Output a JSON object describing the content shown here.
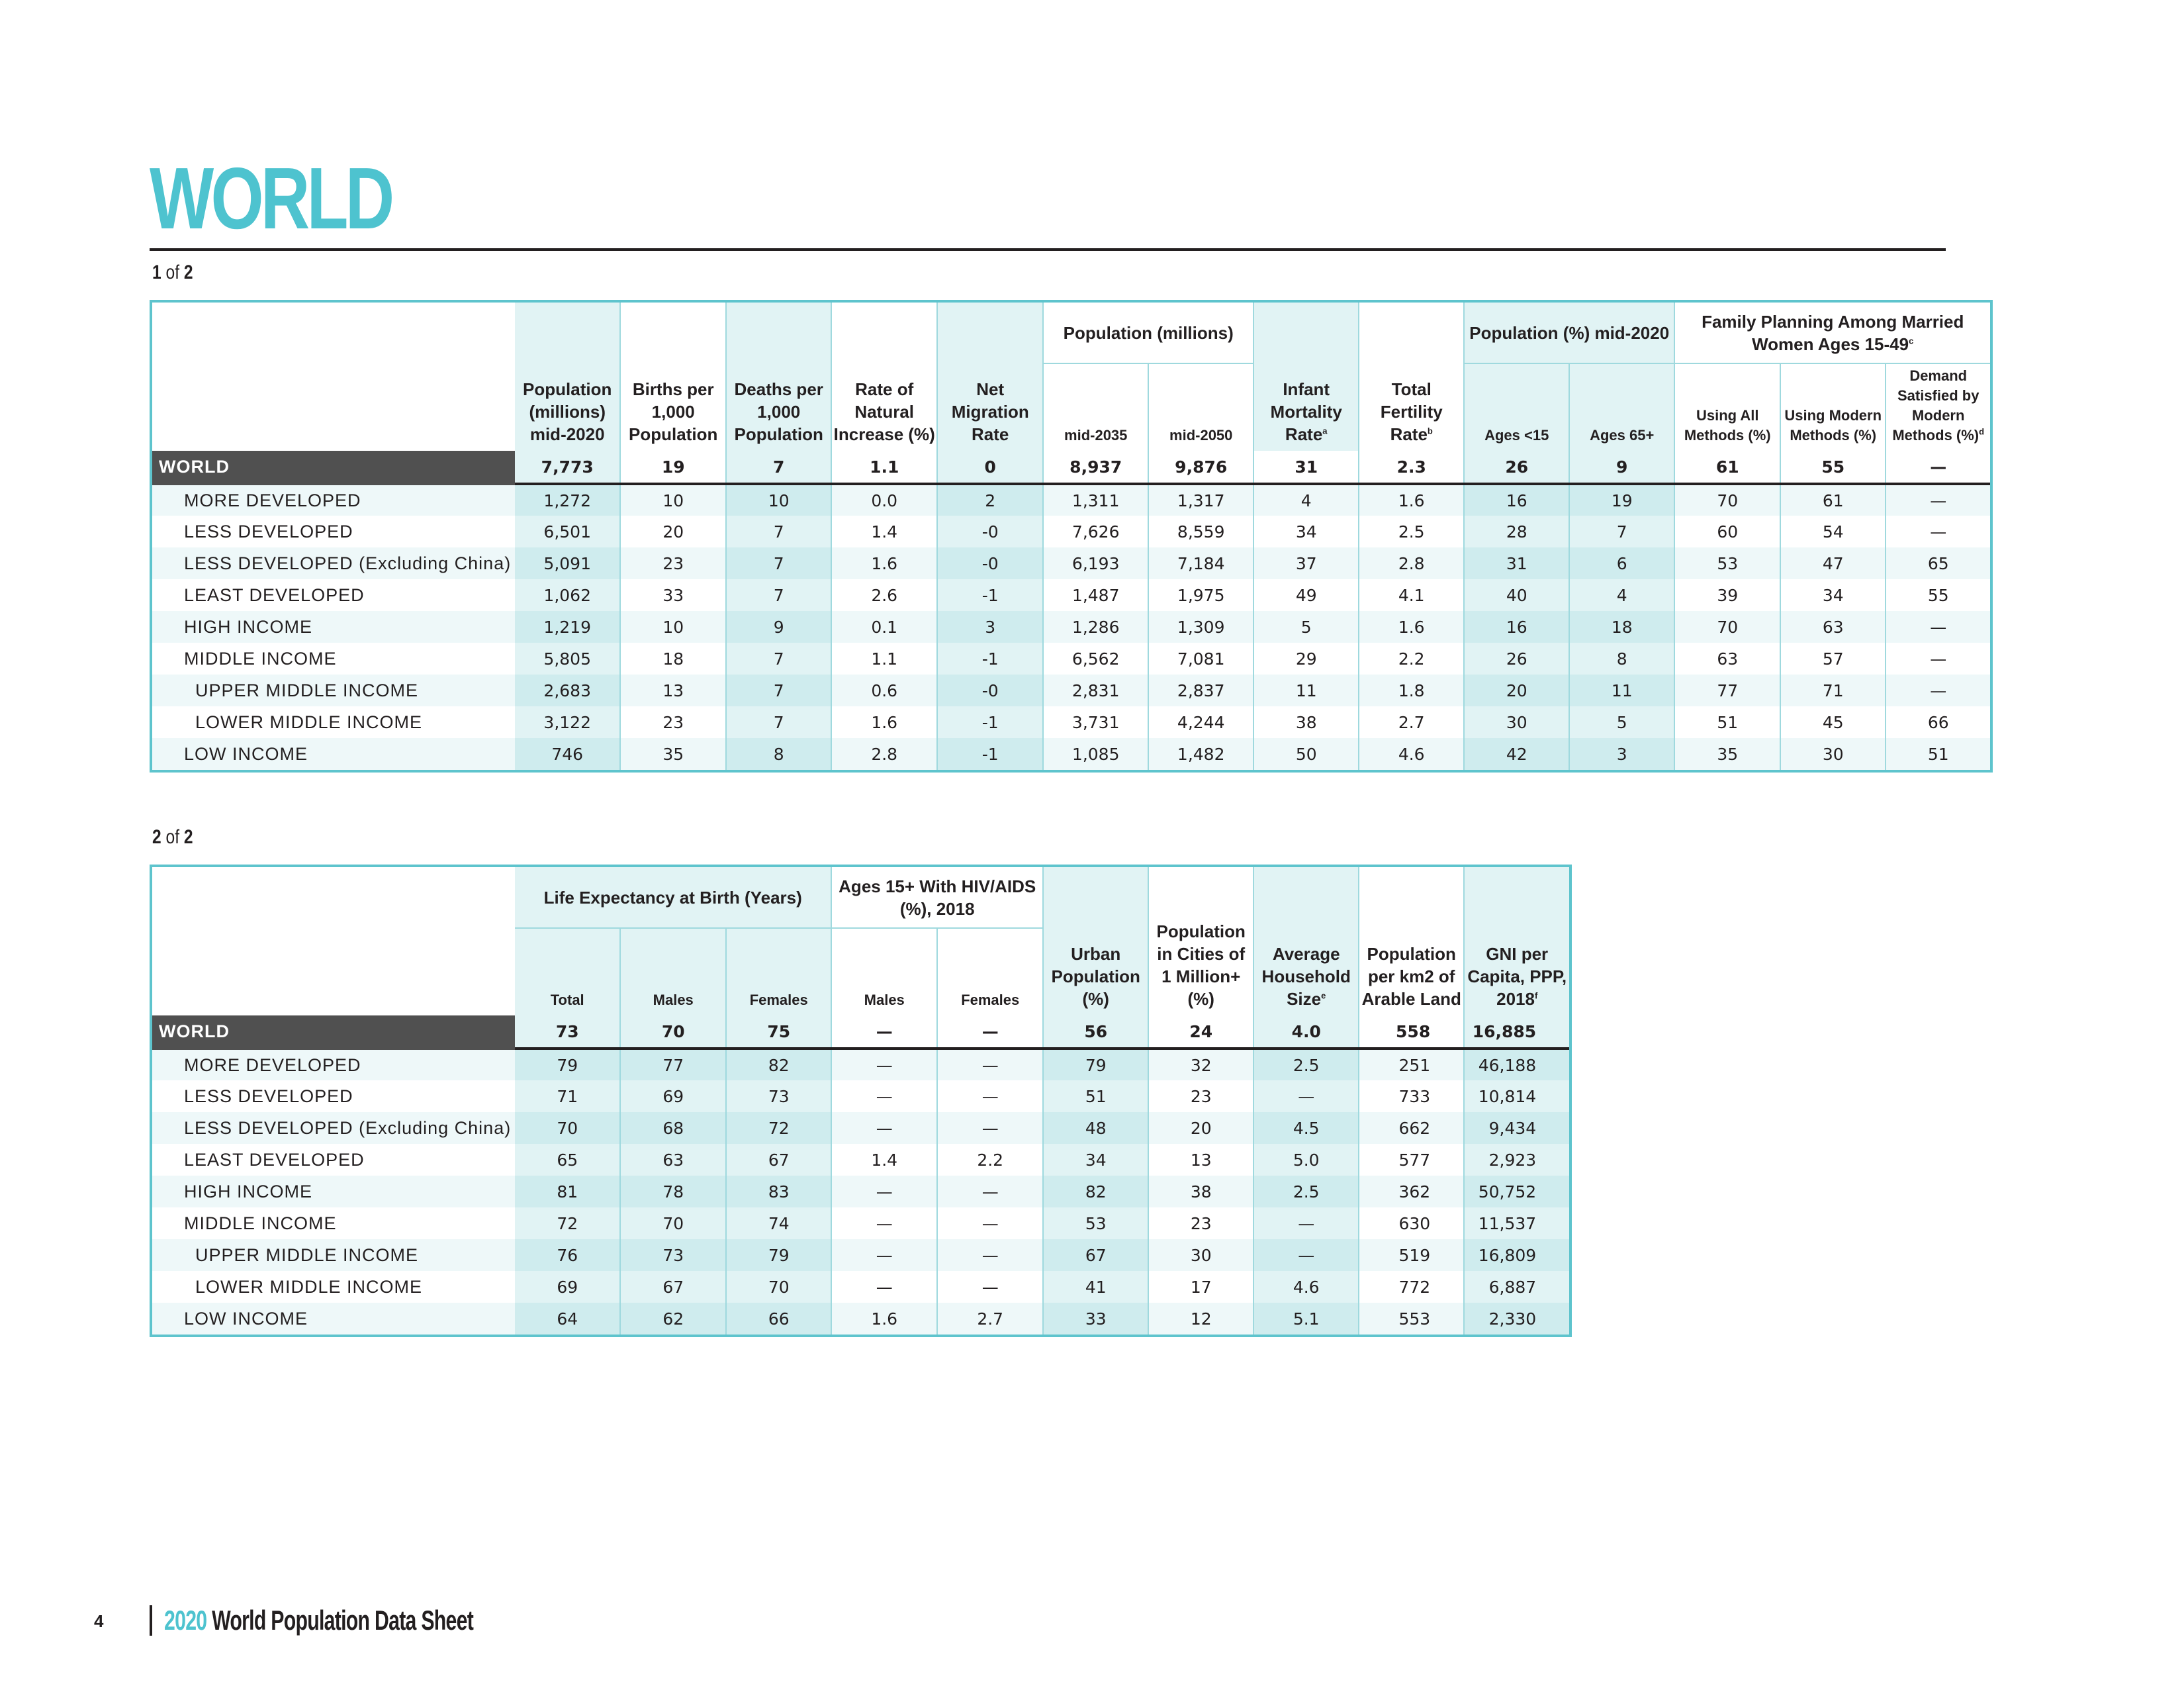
{
  "page": {
    "title": "WORLD",
    "page_number": "4",
    "footer_year": "2020",
    "footer_title": "World Population Data Sheet",
    "accent_color": "#4ec3cf"
  },
  "part1": {
    "label_n": "1",
    "label_of": "of",
    "label_total": "2",
    "groups": {
      "pop_projection": "Population (millions)",
      "pop_pct": "Population (%) mid-2020",
      "family_planning": "Family Planning Among Married Women Ages 15-49"
    },
    "columns": [
      "Population (millions) mid-2020",
      "Births per 1,000 Population",
      "Deaths per 1,000 Population",
      "Rate of Natural Increase (%)",
      "Net Migration Rate",
      "mid-2035",
      "mid-2050",
      "Infant Mortality Rate",
      "Total Fertility Rate",
      "Ages <15",
      "Ages 65+",
      "Using All Methods (%)",
      "Using Modern Methods (%)",
      "Demand Satisfied by Modern Methods (%)"
    ],
    "rows": [
      {
        "label": "WORLD",
        "values": [
          "7,773",
          "19",
          "7",
          "1.1",
          "0",
          "8,937",
          "9,876",
          "31",
          "2.3",
          "26",
          "9",
          "61",
          "55",
          "—"
        ]
      },
      {
        "label": "MORE DEVELOPED",
        "values": [
          "1,272",
          "10",
          "10",
          "0.0",
          "2",
          "1,311",
          "1,317",
          "4",
          "1.6",
          "16",
          "19",
          "70",
          "61",
          "—"
        ]
      },
      {
        "label": "LESS DEVELOPED",
        "values": [
          "6,501",
          "20",
          "7",
          "1.4",
          "-0",
          "7,626",
          "8,559",
          "34",
          "2.5",
          "28",
          "7",
          "60",
          "54",
          "—"
        ]
      },
      {
        "label": "LESS DEVELOPED (Excluding China)",
        "values": [
          "5,091",
          "23",
          "7",
          "1.6",
          "-0",
          "6,193",
          "7,184",
          "37",
          "2.8",
          "31",
          "6",
          "53",
          "47",
          "65"
        ]
      },
      {
        "label": "LEAST DEVELOPED",
        "values": [
          "1,062",
          "33",
          "7",
          "2.6",
          "-1",
          "1,487",
          "1,975",
          "49",
          "4.1",
          "40",
          "4",
          "39",
          "34",
          "55"
        ]
      },
      {
        "label": "HIGH INCOME",
        "values": [
          "1,219",
          "10",
          "9",
          "0.1",
          "3",
          "1,286",
          "1,309",
          "5",
          "1.6",
          "16",
          "18",
          "70",
          "63",
          "—"
        ]
      },
      {
        "label": "MIDDLE INCOME",
        "values": [
          "5,805",
          "18",
          "7",
          "1.1",
          "-1",
          "6,562",
          "7,081",
          "29",
          "2.2",
          "26",
          "8",
          "63",
          "57",
          "—"
        ]
      },
      {
        "label": "UPPER MIDDLE INCOME",
        "values": [
          "2,683",
          "13",
          "7",
          "0.6",
          "-0",
          "2,831",
          "2,837",
          "11",
          "1.8",
          "20",
          "11",
          "77",
          "71",
          "—"
        ]
      },
      {
        "label": "LOWER MIDDLE INCOME",
        "values": [
          "3,122",
          "23",
          "7",
          "1.6",
          "-1",
          "3,731",
          "4,244",
          "38",
          "2.7",
          "30",
          "5",
          "51",
          "45",
          "66"
        ]
      },
      {
        "label": "LOW INCOME",
        "values": [
          "746",
          "35",
          "8",
          "2.8",
          "-1",
          "1,085",
          "1,482",
          "50",
          "4.6",
          "42",
          "3",
          "35",
          "30",
          "51"
        ]
      }
    ]
  },
  "part2": {
    "label_n": "2",
    "label_of": "of",
    "label_total": "2",
    "groups": {
      "life_expectancy": "Life Expectancy at Birth (Years)",
      "hiv": "Ages 15+ With HIV/AIDS (%), 2018"
    },
    "columns": [
      "Total",
      "Males",
      "Females",
      "Males",
      "Females",
      "Urban Population (%)",
      "Population in Cities of 1 Million+ (%)",
      "Average Household Size",
      "Population per km2 of Arable Land",
      "GNI per Capita, PPP, 2018"
    ],
    "rows": [
      {
        "label": "WORLD",
        "values": [
          "73",
          "70",
          "75",
          "—",
          "—",
          "56",
          "24",
          "4.0",
          "558",
          "16,885"
        ]
      },
      {
        "label": "MORE DEVELOPED",
        "values": [
          "79",
          "77",
          "82",
          "—",
          "—",
          "79",
          "32",
          "2.5",
          "251",
          "46,188"
        ]
      },
      {
        "label": "LESS DEVELOPED",
        "values": [
          "71",
          "69",
          "73",
          "—",
          "—",
          "51",
          "23",
          "—",
          "733",
          "10,814"
        ]
      },
      {
        "label": "LESS DEVELOPED (Excluding China)",
        "values": [
          "70",
          "68",
          "72",
          "—",
          "—",
          "48",
          "20",
          "4.5",
          "662",
          "9,434"
        ]
      },
      {
        "label": "LEAST DEVELOPED",
        "values": [
          "65",
          "63",
          "67",
          "1.4",
          "2.2",
          "34",
          "13",
          "5.0",
          "577",
          "2,923"
        ]
      },
      {
        "label": "HIGH INCOME",
        "values": [
          "81",
          "78",
          "83",
          "—",
          "—",
          "82",
          "38",
          "2.5",
          "362",
          "50,752"
        ]
      },
      {
        "label": "MIDDLE INCOME",
        "values": [
          "72",
          "70",
          "74",
          "—",
          "—",
          "53",
          "23",
          "—",
          "630",
          "11,537"
        ]
      },
      {
        "label": "UPPER MIDDLE INCOME",
        "values": [
          "76",
          "73",
          "79",
          "—",
          "—",
          "67",
          "30",
          "—",
          "519",
          "16,809"
        ]
      },
      {
        "label": "LOWER MIDDLE INCOME",
        "values": [
          "69",
          "67",
          "70",
          "—",
          "—",
          "41",
          "17",
          "4.6",
          "772",
          "6,887"
        ]
      },
      {
        "label": "LOW INCOME",
        "values": [
          "64",
          "62",
          "66",
          "1.6",
          "2.7",
          "33",
          "12",
          "5.1",
          "553",
          "2,330"
        ]
      }
    ]
  }
}
